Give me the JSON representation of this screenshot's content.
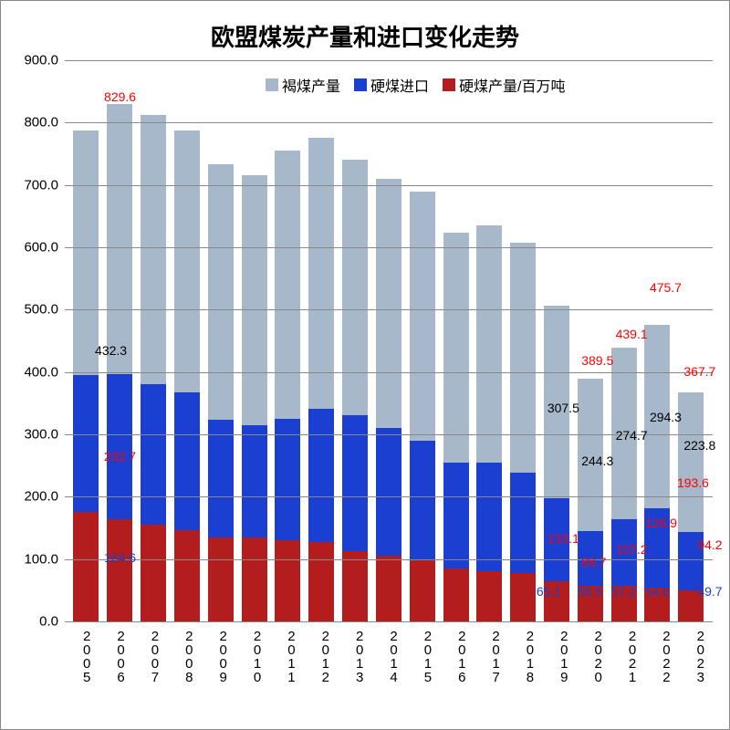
{
  "chart": {
    "title": "欧盟煤炭产量和进口变化走势",
    "title_fontsize": 26,
    "background_color": "#ffffff",
    "grid_color": "#888888",
    "plot_border_color": "#888888",
    "ylim": [
      0,
      900
    ],
    "ytick_step": 100,
    "yticks": [
      "0.0",
      "100.0",
      "200.0",
      "300.0",
      "400.0",
      "500.0",
      "600.0",
      "700.0",
      "800.0",
      "900.0"
    ],
    "categories": [
      "2005",
      "2006",
      "2007",
      "2008",
      "2009",
      "2010",
      "2011",
      "2012",
      "2013",
      "2014",
      "2015",
      "2016",
      "2017",
      "2018",
      "2019",
      "2020",
      "2021",
      "2022",
      "2023"
    ],
    "legend": [
      {
        "label": "褐煤产量",
        "color": "#a6b8ca"
      },
      {
        "label": "硬煤进口",
        "color": "#1a3fd1"
      },
      {
        "label": "硬煤产量/百万吨",
        "color": "#b31d1d"
      }
    ],
    "series": {
      "hard_coal_prod": {
        "color": "#b31d1d",
        "values": [
          175,
          164.6,
          155,
          147,
          135,
          135,
          130,
          128,
          113,
          105,
          100,
          85,
          80,
          78,
          65.1,
          56.5,
          57.2,
          54.6,
          49.7
        ]
      },
      "hard_coal_import": {
        "color": "#1a3fd1",
        "values": [
          220,
          232.7,
          225,
          220,
          188,
          180,
          195,
          213,
          218,
          205,
          190,
          170,
          175,
          160,
          133.1,
          88.7,
          107.2,
          126.9,
          94.2
        ]
      },
      "lignite_prod": {
        "color": "#a6b8ca",
        "values": [
          392,
          432.3,
          432,
          421,
          410,
          400,
          430,
          435,
          410,
          400,
          400,
          369,
          380,
          370,
          307.5,
          244.3,
          274.7,
          294.3,
          223.8
        ]
      }
    },
    "totals_red_labels": {
      "2006": "829.6",
      "2019": null,
      "2020": "389.5",
      "2021": "439.1",
      "2022": "475.7",
      "2023": "367.7"
    },
    "visible_labels": [
      {
        "text": "829.6",
        "color": "#ff0000",
        "year": "2006",
        "y": 838
      },
      {
        "text": "432.3",
        "color": "#000000",
        "year": "2006",
        "y": 432,
        "offset_x": -10
      },
      {
        "text": "232.7",
        "color": "#ff0000",
        "year": "2006",
        "y": 262
      },
      {
        "text": "164.6",
        "color": "#1a3fd1",
        "year": "2006",
        "y": 100
      },
      {
        "text": "307.5",
        "color": "#000000",
        "year": "2019",
        "y": 340
      },
      {
        "text": "133.1",
        "color": "#ff0000",
        "year": "2019",
        "y": 130
      },
      {
        "text": "65.1",
        "color": "#1a3fd1",
        "year": "2019",
        "y": 45,
        "offset_x": -12
      },
      {
        "text": "389.5",
        "color": "#ff0000",
        "year": "2020",
        "y": 415
      },
      {
        "text": "244.3",
        "color": "#000000",
        "year": "2020",
        "y": 255
      },
      {
        "text": "88.7",
        "color": "#ff0000",
        "year": "2020",
        "y": 92
      },
      {
        "text": "56.5",
        "color": "#1a3fd1",
        "year": "2020",
        "y": 45,
        "offset_x": -5
      },
      {
        "text": "439.1",
        "color": "#ff0000",
        "year": "2021",
        "y": 458
      },
      {
        "text": "274.7",
        "color": "#000000",
        "year": "2021",
        "y": 295
      },
      {
        "text": "107.2",
        "color": "#ff0000",
        "year": "2021",
        "y": 112
      },
      {
        "text": "57.2",
        "color": "#1a3fd1",
        "year": "2021",
        "y": 45,
        "offset_x": -5
      },
      {
        "text": "475.7",
        "color": "#ff0000",
        "year": "2022",
        "y": 532
      },
      {
        "text": "294.3",
        "color": "#000000",
        "year": "2022",
        "y": 325
      },
      {
        "text": "126.9",
        "color": "#ff0000",
        "year": "2022",
        "y": 155,
        "offset_x": -5
      },
      {
        "text": "54.6",
        "color": "#1a3fd1",
        "year": "2022",
        "y": 45,
        "offset_x": -5
      },
      {
        "text": "193.6",
        "color": "#ff0000",
        "year": "2022",
        "y": 220,
        "offset_x": 30
      },
      {
        "text": "367.7",
        "color": "#ff0000",
        "year": "2023",
        "y": 398
      },
      {
        "text": "223.8",
        "color": "#000000",
        "year": "2023",
        "y": 280
      },
      {
        "text": "94.2",
        "color": "#ff0000",
        "year": "2023",
        "y": 120,
        "offset_x": 15
      },
      {
        "text": "49.7",
        "color": "#1a3fd1",
        "year": "2023",
        "y": 45,
        "offset_x": 15
      }
    ]
  }
}
